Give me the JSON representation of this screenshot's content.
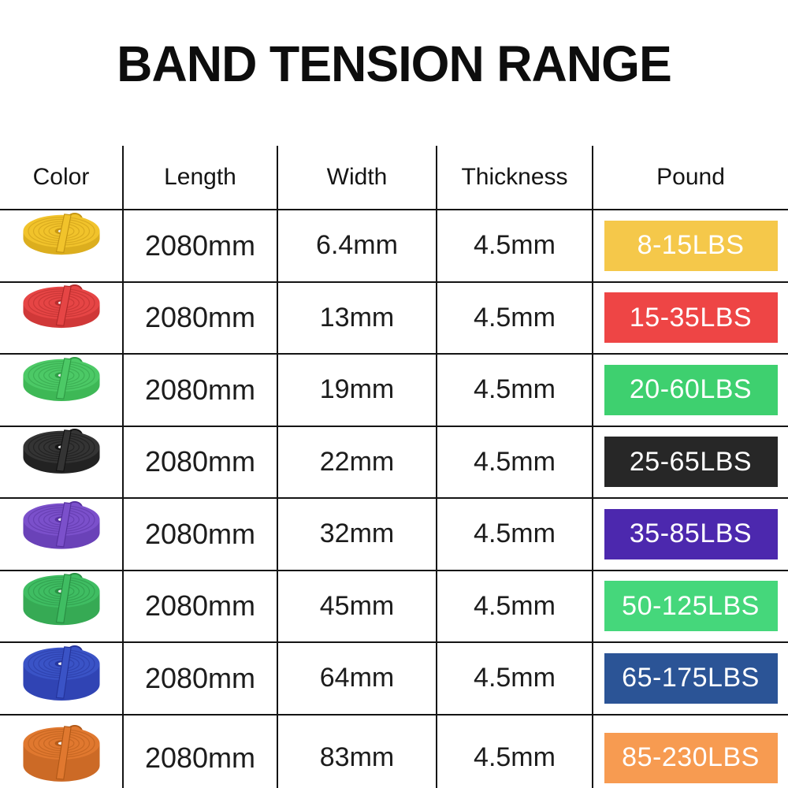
{
  "title": "BAND TENSION RANGE",
  "colors": {
    "line": "#141414",
    "text": "#1c1c1c",
    "badge_text": "#ffffff",
    "background": "#ffffff"
  },
  "table": {
    "headers": [
      "Color",
      "Length",
      "Width",
      "Thickness",
      "Pound"
    ],
    "rows": [
      {
        "color_name": "yellow",
        "length": "2080mm",
        "width": "6.4mm",
        "thickness": "4.5mm",
        "pound": "8-15LBS",
        "badge_color": "#f5c84a",
        "band_colors": {
          "main": "#f1c32b",
          "dark": "#c39413",
          "side": "#dcae1e"
        },
        "roll_height": 10
      },
      {
        "color_name": "red",
        "length": "2080mm",
        "width": "13mm",
        "thickness": "4.5mm",
        "pound": "15-35LBS",
        "badge_color": "#ee4545",
        "band_colors": {
          "main": "#e64545",
          "dark": "#b02a2a",
          "side": "#d03838"
        },
        "roll_height": 12
      },
      {
        "color_name": "green",
        "length": "2080mm",
        "width": "19mm",
        "thickness": "4.5mm",
        "pound": "20-60LBS",
        "badge_color": "#3ed06f",
        "band_colors": {
          "main": "#4cc966",
          "dark": "#2e9a44",
          "side": "#3eb856"
        },
        "roll_height": 13
      },
      {
        "color_name": "black",
        "length": "2080mm",
        "width": "22mm",
        "thickness": "4.5mm",
        "pound": "25-65LBS",
        "badge_color": "#272727",
        "band_colors": {
          "main": "#343434",
          "dark": "#121212",
          "side": "#222222"
        },
        "roll_height": 14
      },
      {
        "color_name": "purple",
        "length": "2080mm",
        "width": "32mm",
        "thickness": "4.5mm",
        "pound": "35-85LBS",
        "badge_color": "#4c28ae",
        "band_colors": {
          "main": "#7b50cb",
          "dark": "#55309e",
          "side": "#6a42b8"
        },
        "roll_height": 18
      },
      {
        "color_name": "green",
        "length": "2080mm",
        "width": "45mm",
        "thickness": "4.5mm",
        "pound": "50-125LBS",
        "badge_color": "#45d77b",
        "band_colors": {
          "main": "#3fbd62",
          "dark": "#288c42",
          "side": "#36aa54"
        },
        "roll_height": 24
      },
      {
        "color_name": "blue",
        "length": "2080mm",
        "width": "64mm",
        "thickness": "4.5mm",
        "pound": "65-175LBS",
        "badge_color": "#2b5496",
        "band_colors": {
          "main": "#3a53c6",
          "dark": "#243399",
          "side": "#3044b4"
        },
        "roll_height": 28
      },
      {
        "color_name": "orange",
        "length": "2080mm",
        "width": "83mm",
        "thickness": "4.5mm",
        "pound": "85-230LBS",
        "badge_color": "#f79b51",
        "band_colors": {
          "main": "#e0782f",
          "dark": "#b05817",
          "side": "#cc6a26"
        },
        "roll_height": 30
      }
    ]
  }
}
